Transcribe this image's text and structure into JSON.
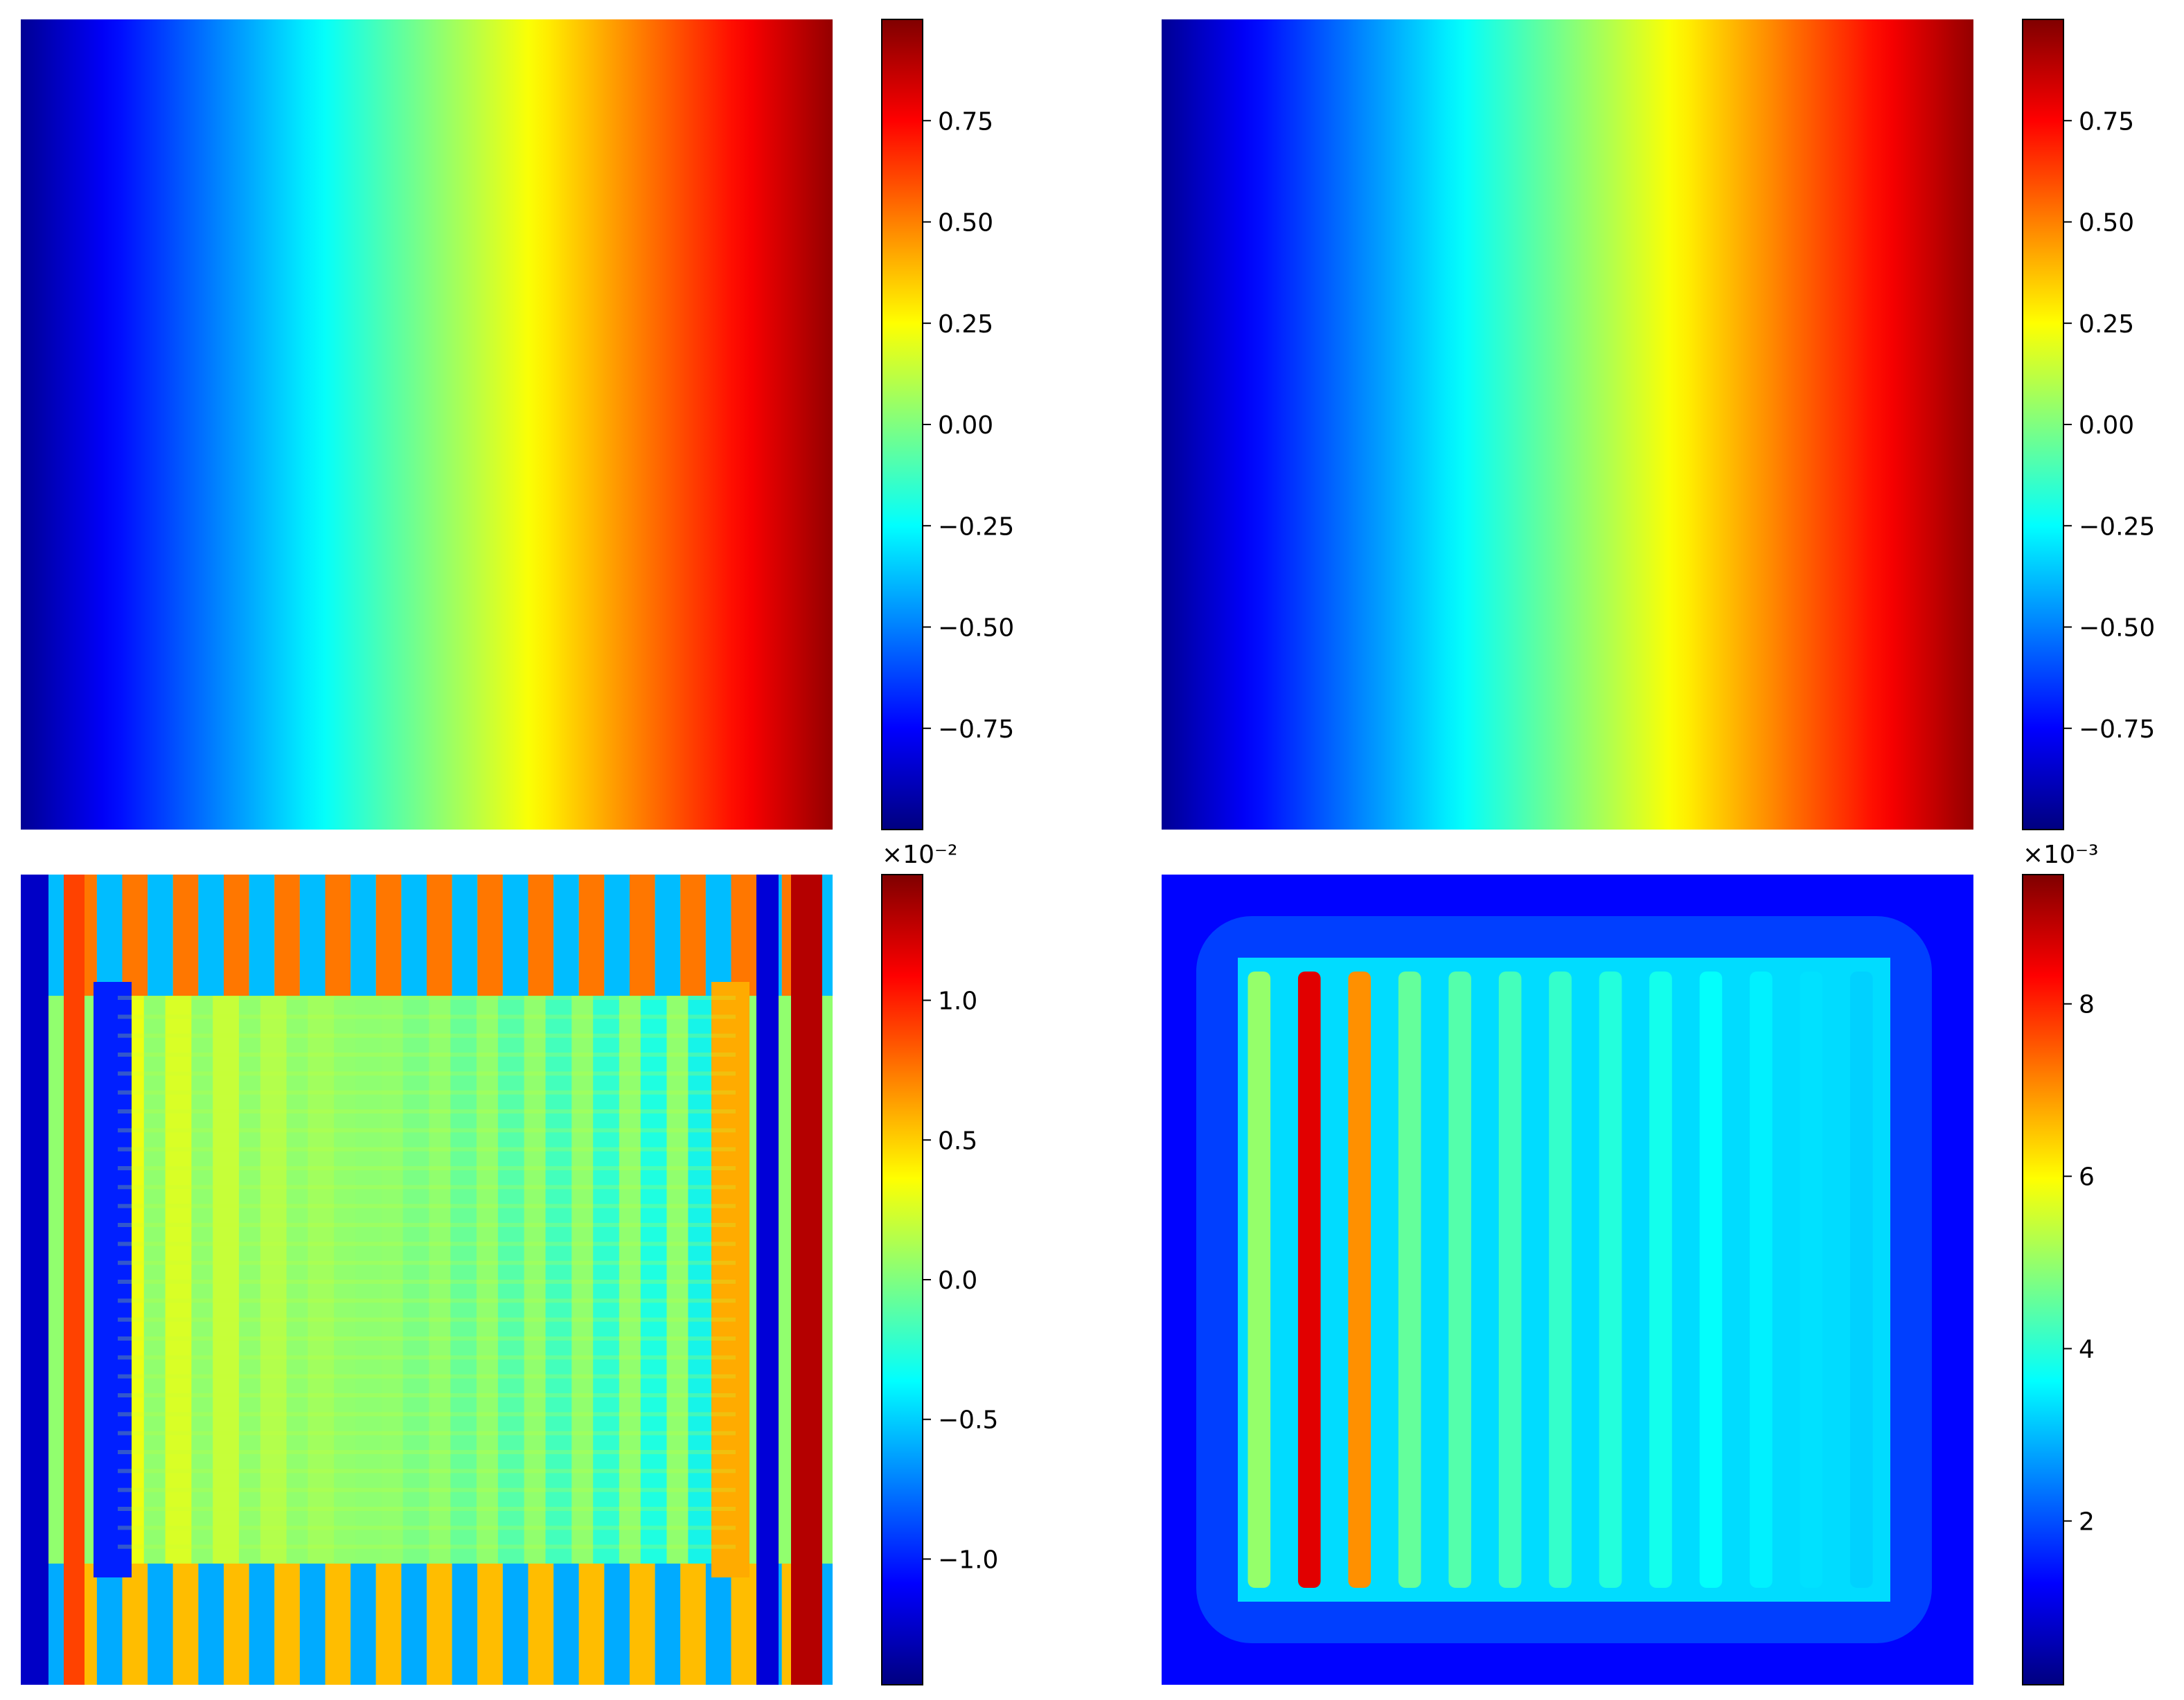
{
  "figure": {
    "colormap": "jet",
    "background": "#ffffff"
  },
  "chart_data": [
    {
      "type": "heatmap",
      "panel": "top-left",
      "pattern": "linear-x",
      "vmin": -1.0,
      "vmax": 1.0,
      "colorbar_ticks": [
        -0.75,
        -0.5,
        -0.25,
        0.0,
        0.25,
        0.5,
        0.75
      ],
      "colorbar_tick_labels": [
        "−0.75",
        "−0.50",
        "−0.25",
        "0.00",
        "0.25",
        "0.50",
        "0.75"
      ],
      "colorbar_exponent": "",
      "grid": false,
      "axes_visible": false
    },
    {
      "type": "heatmap",
      "panel": "top-right",
      "pattern": "linear-x",
      "vmin": -1.0,
      "vmax": 1.0,
      "colorbar_ticks": [
        -0.75,
        -0.5,
        -0.25,
        0.0,
        0.25,
        0.5,
        0.75
      ],
      "colorbar_tick_labels": [
        "−0.75",
        "−0.50",
        "−0.25",
        "0.00",
        "0.25",
        "0.50",
        "0.75"
      ],
      "colorbar_exponent": "",
      "grid": false,
      "axes_visible": false
    },
    {
      "type": "heatmap",
      "panel": "bottom-left",
      "pattern": "error-field-stripes",
      "vmin": -1.45,
      "vmax": 1.45,
      "colorbar_ticks": [
        -1.0,
        -0.5,
        0.0,
        0.5,
        1.0
      ],
      "colorbar_tick_labels": [
        "−1.0",
        "−0.5",
        "0.0",
        "0.5",
        "1.0"
      ],
      "colorbar_exponent": "×10⁻²",
      "grid": false,
      "axes_visible": false
    },
    {
      "type": "heatmap",
      "panel": "bottom-right",
      "pattern": "abs-error-columns",
      "vmin": 0.1,
      "vmax": 9.5,
      "colorbar_ticks": [
        2,
        4,
        6,
        8
      ],
      "colorbar_tick_labels": [
        "2",
        "4",
        "6",
        "8"
      ],
      "colorbar_exponent": "×10⁻³",
      "grid": false,
      "axes_visible": false
    }
  ]
}
